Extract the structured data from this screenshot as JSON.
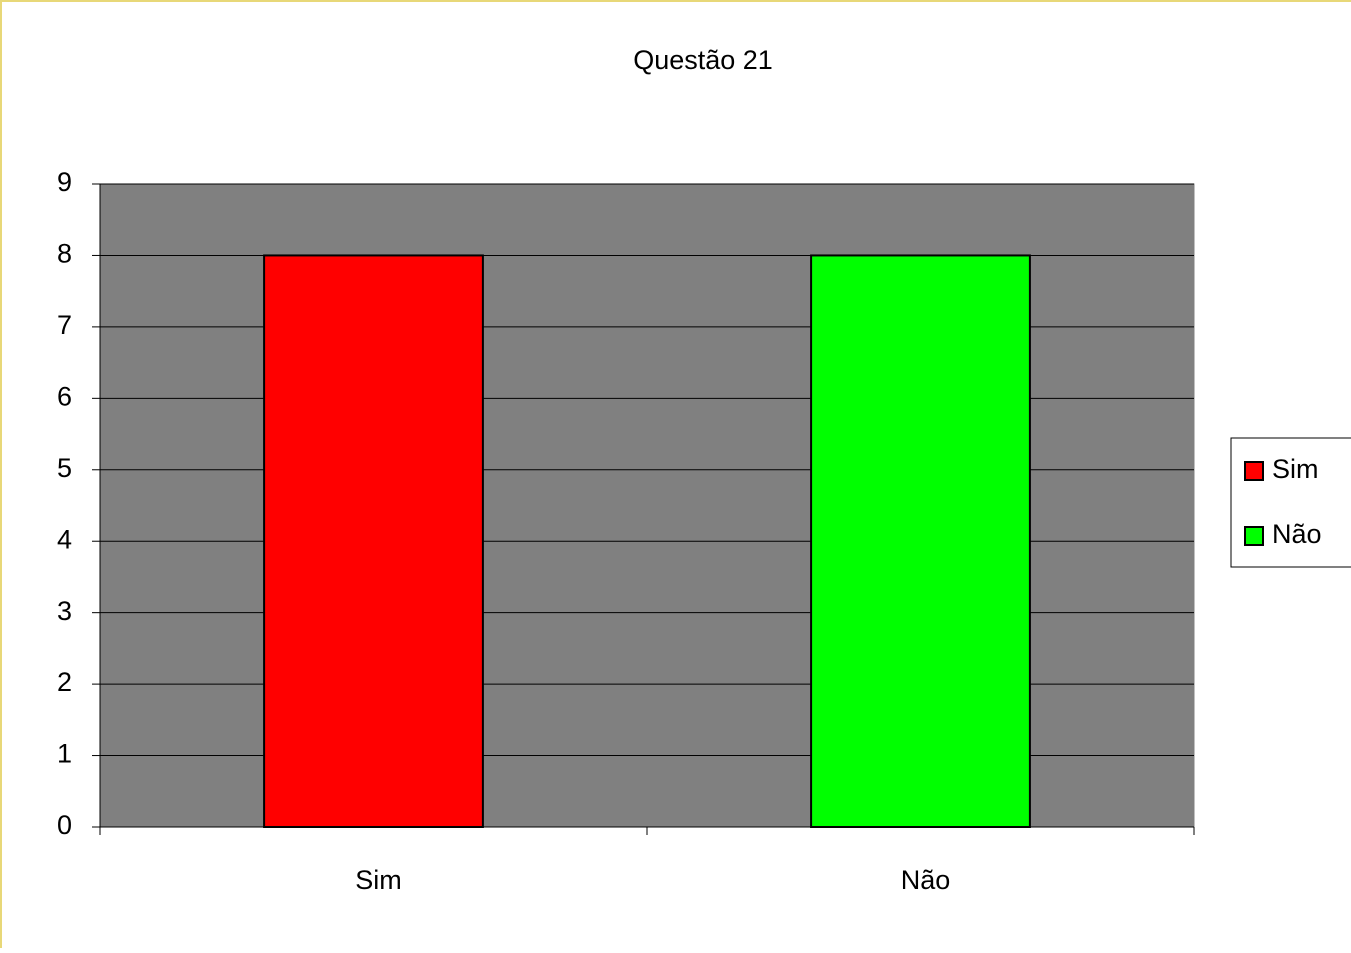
{
  "chart_data": {
    "type": "bar",
    "title": "Questão 21",
    "categories": [
      "Sim",
      "Não"
    ],
    "values": [
      8,
      8
    ],
    "colors": [
      "#ff0000",
      "#00ff00"
    ],
    "ylim": [
      0,
      9
    ],
    "yticks": [
      0,
      1,
      2,
      3,
      4,
      5,
      6,
      7,
      8,
      9
    ],
    "grid": true,
    "legend": "right"
  }
}
